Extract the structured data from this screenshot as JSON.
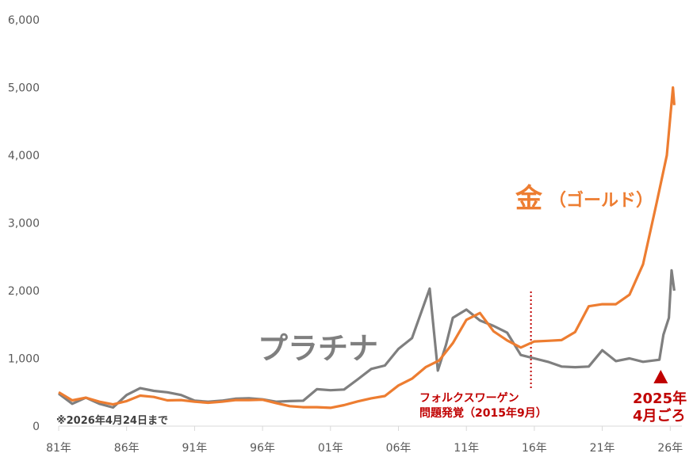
{
  "chart_data": {
    "type": "line",
    "title": "",
    "xlabel": "",
    "ylabel": "",
    "ylim": [
      0,
      6000
    ],
    "yticks": [
      0,
      1000,
      2000,
      3000,
      4000,
      5000,
      6000
    ],
    "ytick_labels": [
      "0",
      "1,000",
      "2,000",
      "3,000",
      "4,000",
      "5,000",
      "6,000"
    ],
    "xticks": [
      1981,
      1986,
      1991,
      1996,
      2001,
      2006,
      2011,
      2016,
      2021,
      2026
    ],
    "xtick_labels": [
      "81年",
      "86年",
      "91年",
      "96年",
      "01年",
      "06年",
      "11年",
      "16年",
      "21年",
      "26年"
    ],
    "grid": false,
    "legend_position": "inline labels",
    "series": [
      {
        "name": "金（ゴールド）",
        "color": "#ED7D31",
        "x": [
          1981,
          1982,
          1983,
          1984,
          1985,
          1986,
          1987,
          1988,
          1989,
          1990,
          1991,
          1992,
          1993,
          1994,
          1995,
          1996,
          1997,
          1998,
          1999,
          2000,
          2001,
          2002,
          2003,
          2004,
          2005,
          2006,
          2007,
          2008,
          2009,
          2010,
          2011,
          2012,
          2013,
          2014,
          2015,
          2016,
          2017,
          2018,
          2019,
          2020,
          2021,
          2022,
          2023,
          2024,
          2025,
          2025.75,
          2026.2,
          2026.3
        ],
        "values": [
          500,
          380,
          420,
          360,
          320,
          370,
          450,
          430,
          380,
          385,
          360,
          345,
          360,
          385,
          385,
          390,
          340,
          295,
          280,
          280,
          270,
          310,
          365,
          410,
          445,
          600,
          700,
          870,
          970,
          1225,
          1570,
          1670,
          1400,
          1265,
          1160,
          1250,
          1260,
          1270,
          1390,
          1770,
          1800,
          1800,
          1940,
          2390,
          3300,
          4000,
          5000,
          4740
        ]
      },
      {
        "name": "プラチナ",
        "color": "#7F7F7F",
        "x": [
          1981,
          1982,
          1983,
          1984,
          1985,
          1986,
          1987,
          1988,
          1989,
          1990,
          1991,
          1992,
          1993,
          1994,
          1995,
          1996,
          1997,
          1998,
          1999,
          2000,
          2001,
          2002,
          2003,
          2004,
          2005,
          2006,
          2007,
          2008.3,
          2008.9,
          2009.5,
          2010,
          2011,
          2012,
          2013,
          2014,
          2015,
          2016,
          2017,
          2018,
          2019,
          2020,
          2021,
          2022,
          2023,
          2024,
          2025.2,
          2025.5,
          2025.9,
          2026.1,
          2026.3
        ],
        "values": [
          480,
          330,
          420,
          330,
          275,
          460,
          560,
          520,
          500,
          460,
          375,
          360,
          375,
          405,
          410,
          395,
          360,
          370,
          375,
          545,
          530,
          540,
          690,
          845,
          895,
          1140,
          1300,
          2030,
          820,
          1200,
          1600,
          1720,
          1560,
          1480,
          1380,
          1050,
          1000,
          950,
          880,
          870,
          880,
          1120,
          960,
          1000,
          950,
          980,
          1350,
          1600,
          2300,
          2000
        ]
      }
    ],
    "annotations": [
      {
        "text": "金",
        "sub": "（ゴールド）",
        "series": "gold"
      },
      {
        "text": "プラチナ",
        "series": "platinum"
      },
      {
        "text": "※2026年4月24日まで"
      },
      {
        "text": "フォルクスワーゲン",
        "line2": "問題発覚（2015年9月）",
        "x": 2015.75,
        "marker": "dotted vertical line"
      },
      {
        "text": "2025年",
        "line2": "4月ごろ",
        "x": 2025.3,
        "marker": "red triangle"
      }
    ]
  },
  "labels": {
    "gold_main": "金",
    "gold_sub": "（ゴールド）",
    "platinum": "プラチナ",
    "note": "※2026年4月24日まで",
    "vw_line1": "フォルクスワーゲン",
    "vw_line2": "問題発覚（2015年9月）",
    "apr_line1": "2025年",
    "apr_line2": "4月ごろ"
  },
  "colors": {
    "gold": "#ED7D31",
    "platinum": "#7F7F7F",
    "annotation": "#C00000",
    "axis": "#D9D9D9",
    "tick_text": "#595959"
  }
}
